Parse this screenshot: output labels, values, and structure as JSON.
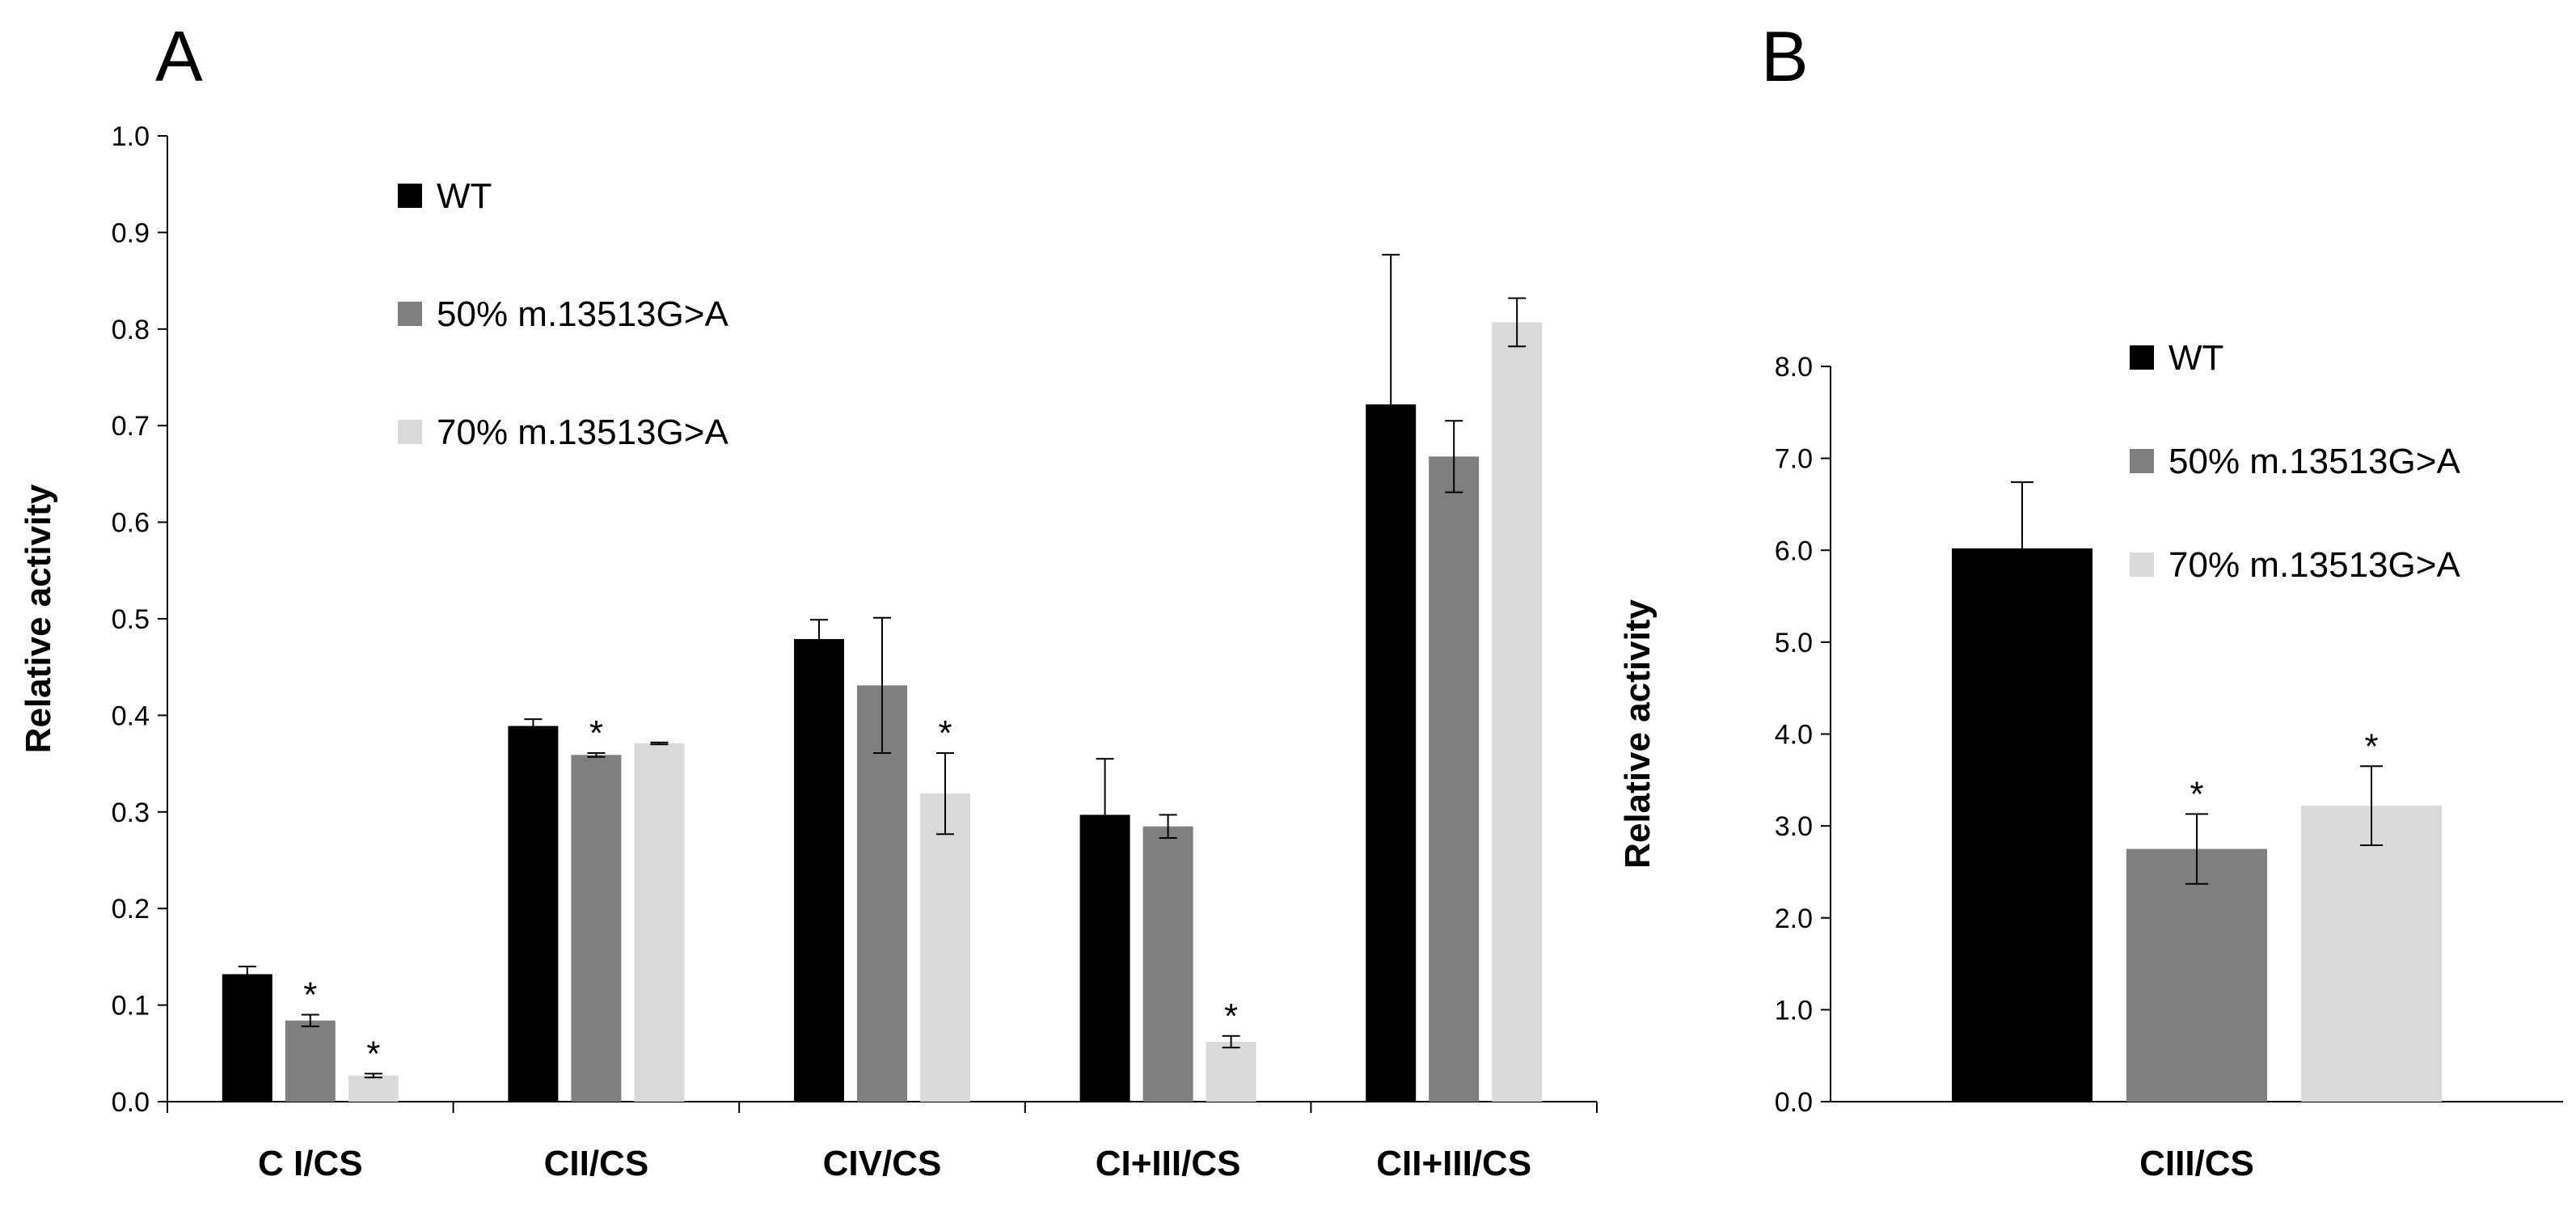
{
  "panels": [
    {
      "letter": "A"
    },
    {
      "letter": "B"
    }
  ],
  "chart_data": [
    {
      "type": "bar",
      "panel": "A",
      "ylabel": "Relative activity",
      "ylim": [
        0,
        1.0
      ],
      "yticks": [
        "0.0",
        "0.1",
        "0.2",
        "0.3",
        "0.4",
        "0.5",
        "0.6",
        "0.7",
        "0.8",
        "0.9",
        "1.0"
      ],
      "categories": [
        "C I/CS",
        "CII/CS",
        "CIV/CS",
        "CI+III/CS",
        "CII+III/CS"
      ],
      "legend_position": "top-left",
      "series": [
        {
          "name": "WT",
          "color": "#000000",
          "values": [
            0.132,
            0.389,
            0.479,
            0.297,
            0.722
          ],
          "errors": [
            0.008,
            0.007,
            0.02,
            0.058,
            0.155
          ],
          "significant": [
            false,
            false,
            false,
            false,
            false
          ]
        },
        {
          "name": "50% m.13513G>A",
          "color": "#7f7f7f",
          "values": [
            0.084,
            0.359,
            0.431,
            0.285,
            0.668
          ],
          "errors": [
            0.006,
            0.002,
            0.07,
            0.012,
            0.037
          ],
          "significant": [
            true,
            true,
            false,
            false,
            false
          ]
        },
        {
          "name": "70% m.13513G>A",
          "color": "#d9d9d9",
          "values": [
            0.027,
            0.371,
            0.319,
            0.062,
            0.807
          ],
          "errors": [
            0.002,
            0.001,
            0.042,
            0.006,
            0.025
          ],
          "significant": [
            true,
            false,
            true,
            true,
            false
          ]
        }
      ],
      "significance_marker": "*"
    },
    {
      "type": "bar",
      "panel": "B",
      "ylabel": "Relative activity",
      "ylim": [
        0,
        8.0
      ],
      "yticks": [
        "0.0",
        "1.0",
        "2.0",
        "3.0",
        "4.0",
        "5.0",
        "6.0",
        "7.0",
        "8.0"
      ],
      "categories": [
        "CIII/CS"
      ],
      "legend_position": "top-right",
      "series": [
        {
          "name": "WT",
          "color": "#000000",
          "values": [
            6.02
          ],
          "errors": [
            0.72
          ],
          "significant": [
            false
          ]
        },
        {
          "name": "50% m.13513G>A",
          "color": "#7f7f7f",
          "values": [
            2.75
          ],
          "errors": [
            0.38
          ],
          "significant": [
            true
          ]
        },
        {
          "name": "70% m.13513G>A",
          "color": "#d9d9d9",
          "values": [
            3.22
          ],
          "errors": [
            0.43
          ],
          "significant": [
            true
          ]
        }
      ],
      "significance_marker": "*"
    }
  ]
}
